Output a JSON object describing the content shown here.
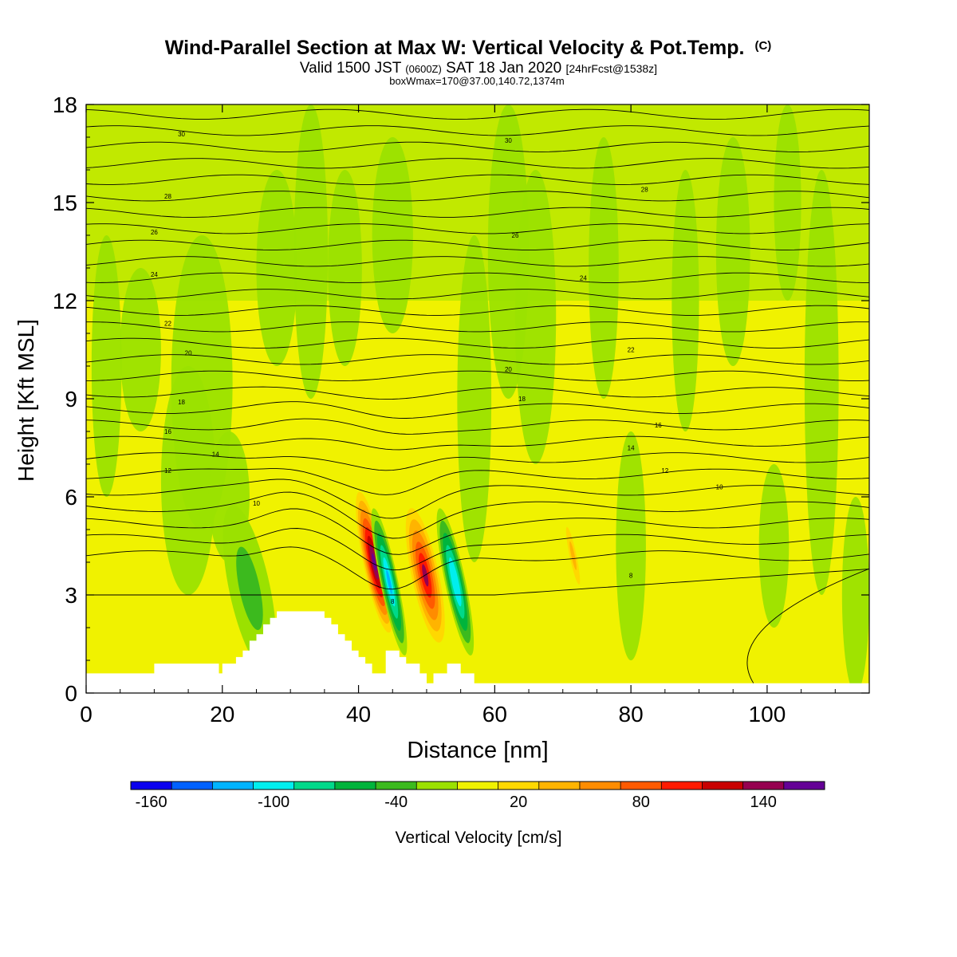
{
  "chart_data": {
    "type": "heatmap",
    "title": "Wind-Parallel Section at Max W: Vertical Velocity & Pot.Temp.",
    "title_mark": "(C)",
    "subtitle_parts": {
      "a": "Valid 1500 JST",
      "b": "(0600Z)",
      "c": "SAT 18 Jan 2020",
      "d": "[24hrFcst@1538z]"
    },
    "subtitle2": "boxWmax=170@37.00,140.72,1374m",
    "xlabel": "Distance [nm]",
    "ylabel": "Height [Kft MSL]",
    "xlim": [
      0,
      115
    ],
    "ylim": [
      0,
      18
    ],
    "x_ticks": [
      "0",
      "20",
      "40",
      "60",
      "80",
      "100"
    ],
    "x_tick_values": [
      0,
      20,
      40,
      60,
      80,
      100
    ],
    "y_ticks": [
      "0",
      "3",
      "6",
      "9",
      "12",
      "15",
      "18"
    ],
    "y_tick_values": [
      0,
      3,
      6,
      9,
      12,
      15,
      18
    ],
    "colorbar": {
      "label": "Vertical Velocity [cm/s]",
      "range": [
        -170,
        170
      ],
      "tick_labels": [
        "-160",
        "-100",
        "-40",
        "20",
        "80",
        "140"
      ],
      "tick_values": [
        -160,
        -100,
        -40,
        20,
        80,
        140
      ],
      "colors": [
        "#0a00ee",
        "#0061ff",
        "#00b4ff",
        "#00eeee",
        "#00d98a",
        "#00b43c",
        "#3cba1e",
        "#9be100",
        "#f0f200",
        "#ffd800",
        "#ffb400",
        "#ff8c00",
        "#ff5a00",
        "#ff1a00",
        "#c80000",
        "#960050",
        "#640096"
      ]
    },
    "background_field_value": 5,
    "field_bands": [
      {
        "name": "down-1",
        "x": 24,
        "y": 3.2,
        "value": -35
      },
      {
        "name": "up-1",
        "x": 42.3,
        "y": 4.0,
        "value": 170
      },
      {
        "name": "down-2",
        "x": 44.5,
        "y": 3.4,
        "value": -120
      },
      {
        "name": "up-2",
        "x": 49.8,
        "y": 3.6,
        "value": 130
      },
      {
        "name": "down-3",
        "x": 54.2,
        "y": 3.4,
        "value": -110
      },
      {
        "name": "up-3",
        "x": 71.5,
        "y": 4.2,
        "value": 40
      }
    ],
    "theta_labels": [
      "8",
      "10",
      "12",
      "14",
      "16",
      "18",
      "20",
      "22",
      "24",
      "26",
      "28",
      "30"
    ],
    "theta_label_values": [
      8,
      10,
      12,
      14,
      16,
      18,
      20,
      22,
      24,
      26,
      28,
      30
    ],
    "terrain": {
      "x": [
        0,
        10,
        19,
        19.5,
        20,
        21,
        22,
        23,
        24,
        25,
        26,
        27,
        28,
        29,
        30,
        31,
        32,
        33,
        34,
        35,
        36,
        37,
        38,
        39,
        40,
        41,
        42,
        43,
        44,
        45,
        46,
        47,
        48,
        49,
        50,
        51,
        52,
        53,
        54,
        55,
        56,
        57,
        58,
        59,
        60
      ],
      "height": [
        0.6,
        0.9,
        0.9,
        0.6,
        0.9,
        0.9,
        1.1,
        1.3,
        1.6,
        1.8,
        2.1,
        2.3,
        2.5,
        2.5,
        2.5,
        2.5,
        2.5,
        2.5,
        2.5,
        2.3,
        2.1,
        1.8,
        1.6,
        1.3,
        1.1,
        0.9,
        0.6,
        0.6,
        1.3,
        1.3,
        1.1,
        0.9,
        0.9,
        0.6,
        0.3,
        0.6,
        0.6,
        0.9,
        0.9,
        0.6,
        0.6,
        0.3,
        0.3,
        0.3,
        0.3
      ]
    }
  }
}
